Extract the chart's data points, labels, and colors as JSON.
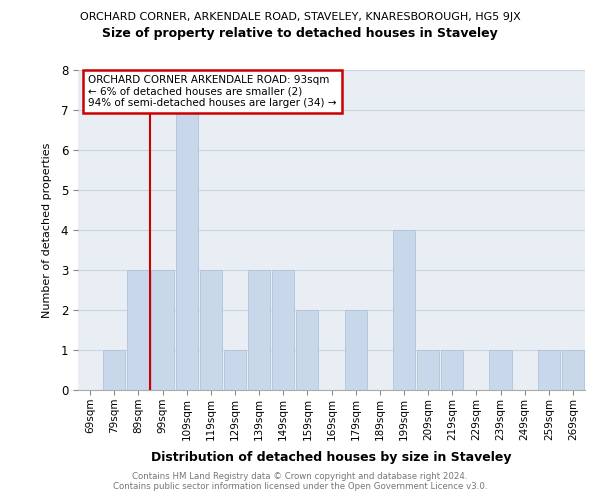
{
  "title_top": "ORCHARD CORNER, ARKENDALE ROAD, STAVELEY, KNARESBOROUGH, HG5 9JX",
  "title_main": "Size of property relative to detached houses in Staveley",
  "xlabel": "Distribution of detached houses by size in Staveley",
  "ylabel": "Number of detached properties",
  "categories": [
    "69sqm",
    "79sqm",
    "89sqm",
    "99sqm",
    "109sqm",
    "119sqm",
    "129sqm",
    "139sqm",
    "149sqm",
    "159sqm",
    "169sqm",
    "179sqm",
    "189sqm",
    "199sqm",
    "209sqm",
    "219sqm",
    "229sqm",
    "239sqm",
    "249sqm",
    "259sqm",
    "269sqm"
  ],
  "values": [
    0,
    1,
    3,
    3,
    7,
    3,
    1,
    3,
    3,
    2,
    0,
    2,
    0,
    4,
    1,
    1,
    0,
    1,
    0,
    1,
    1
  ],
  "bar_color": "#c8d8ea",
  "bar_edge_color": "#b0c4d8",
  "annotation_text": "ORCHARD CORNER ARKENDALE ROAD: 93sqm\n← 6% of detached houses are smaller (2)\n94% of semi-detached houses are larger (34) →",
  "annotation_box_color": "#ffffff",
  "annotation_box_edge": "#cc0000",
  "red_line_color": "#cc0000",
  "footer_line1": "Contains HM Land Registry data © Crown copyright and database right 2024.",
  "footer_line2": "Contains public sector information licensed under the Open Government Licence v3.0.",
  "ylim": [
    0,
    8
  ],
  "yticks": [
    0,
    1,
    2,
    3,
    4,
    5,
    6,
    7,
    8
  ],
  "grid_color": "#c8d4e0",
  "background_color": "#e8eef4"
}
